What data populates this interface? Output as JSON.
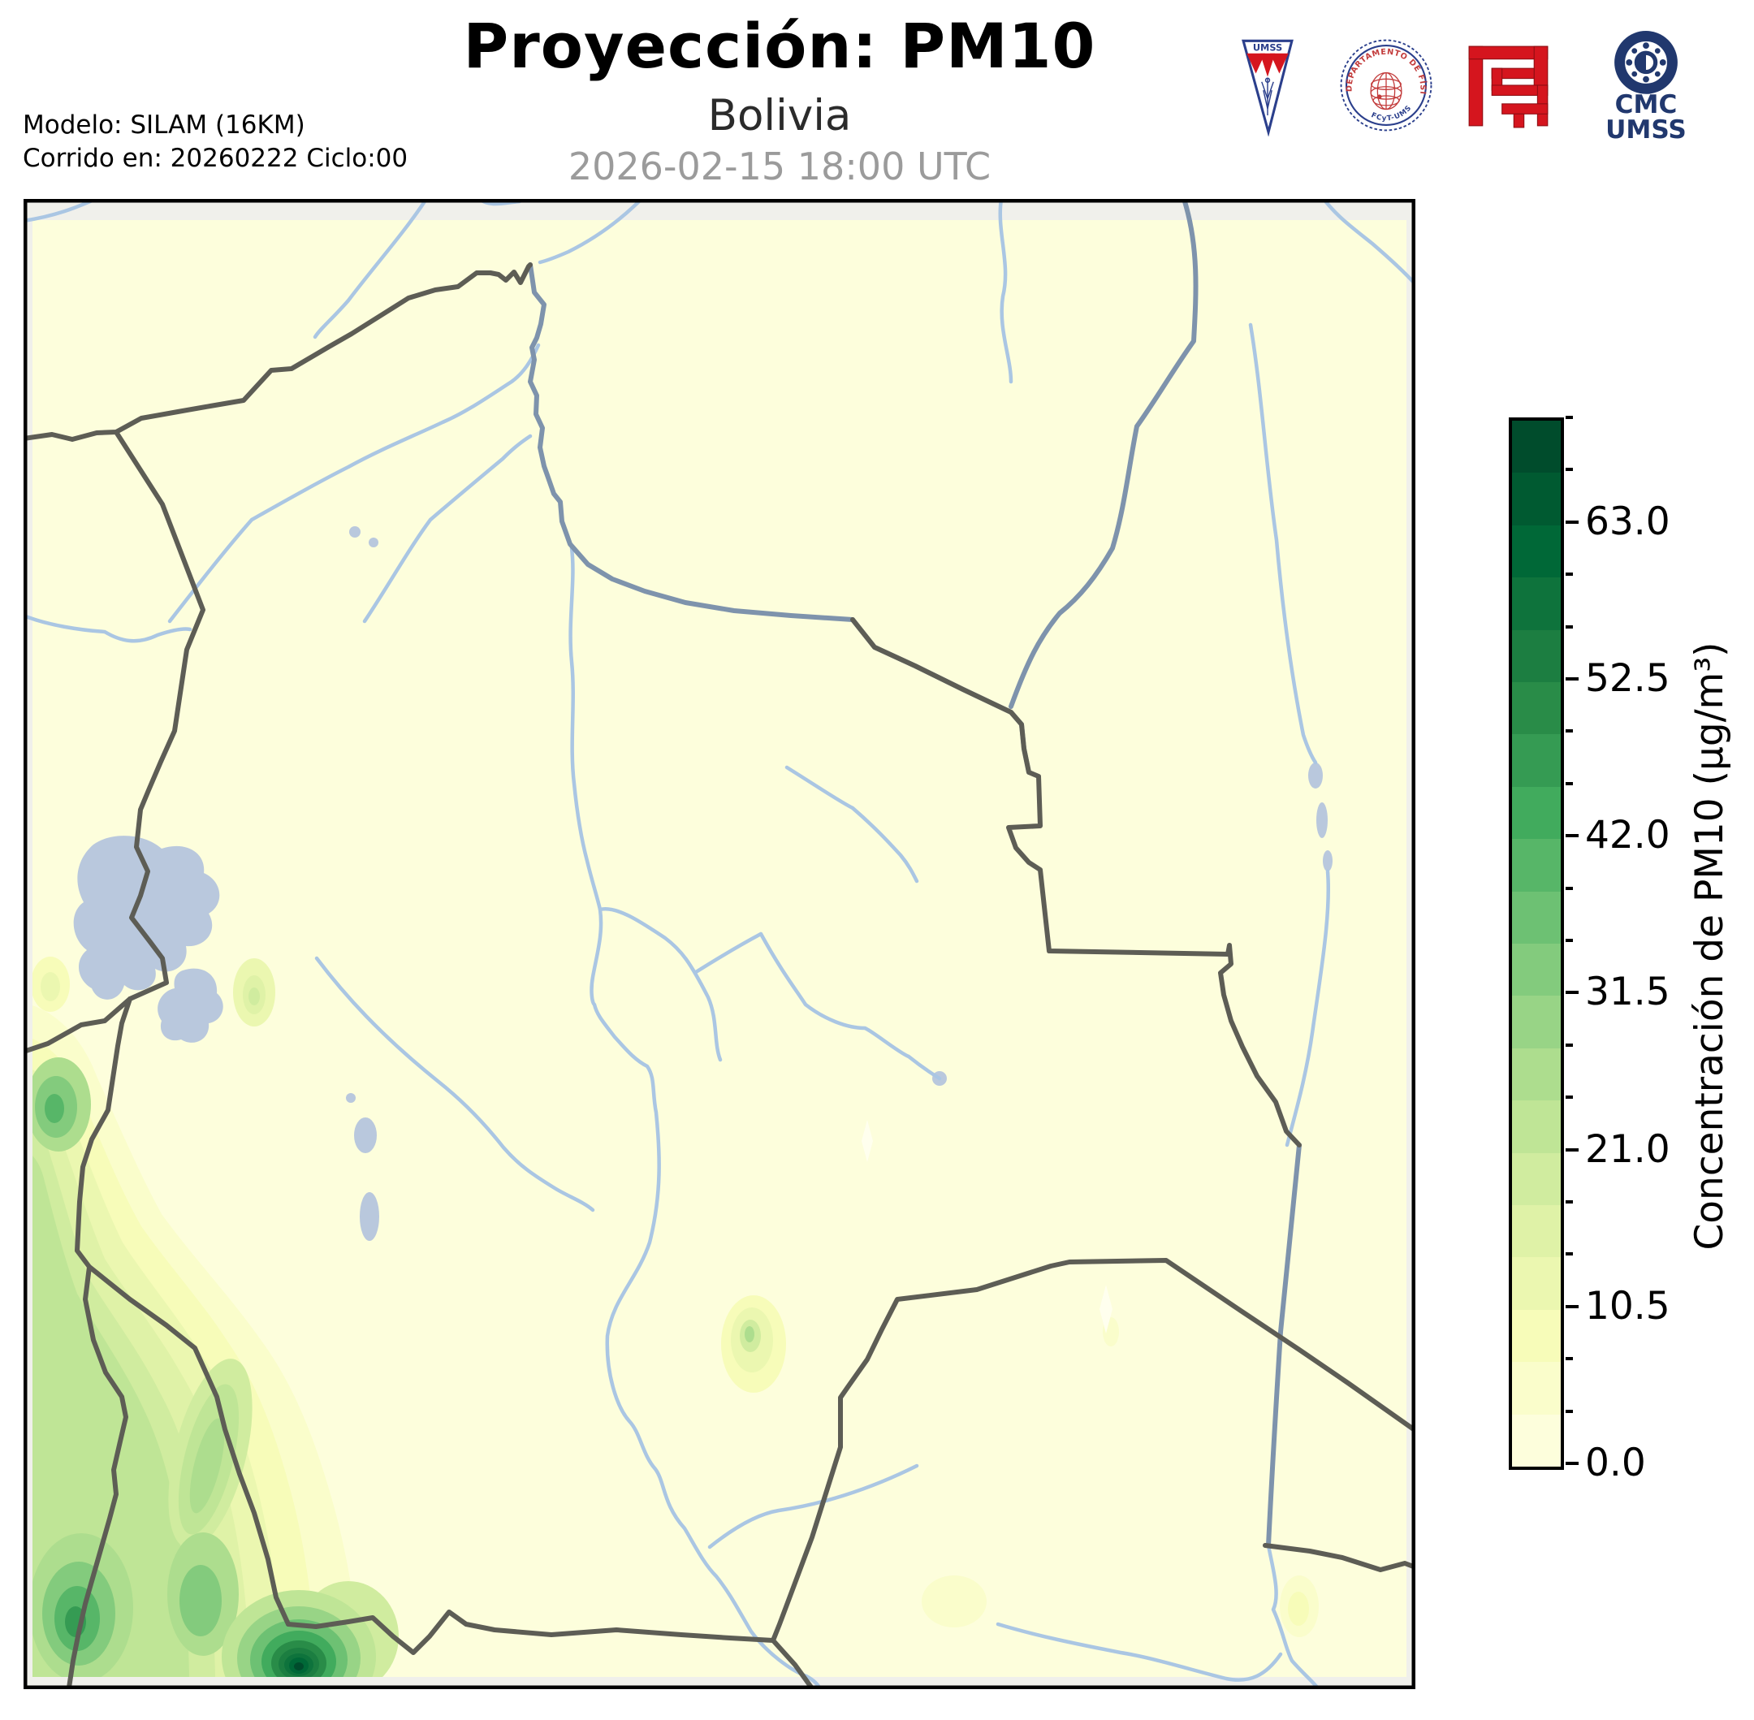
{
  "header": {
    "title": "Proyección: PM10",
    "subtitle": "Bolivia",
    "datetime": "2026-02-15 18:00 UTC",
    "model_line1": "Modelo: SILAM (16KM)",
    "model_line2": "Corrido en: 20260222 Ciclo:00"
  },
  "logos": {
    "pennant_text": "UMSS",
    "seal_text_top": "DEPARTAMENTO DE FÍSICA",
    "seal_text_bottom": "FCyT-UMSS",
    "cmc_line1": "CMC",
    "cmc_line2": "UMSS"
  },
  "colorbar": {
    "title": "Concentración de PM10 (µg/m³)",
    "min": 0,
    "max": 70,
    "minor_step": 3.5,
    "major_ticks": [
      {
        "value": 0.0,
        "label": "0.0"
      },
      {
        "value": 10.5,
        "label": "10.5"
      },
      {
        "value": 21.0,
        "label": "21.0"
      },
      {
        "value": 31.5,
        "label": "31.5"
      },
      {
        "value": 42.0,
        "label": "42.0"
      },
      {
        "value": 52.5,
        "label": "52.5"
      },
      {
        "value": 63.0,
        "label": "63.0"
      }
    ],
    "segments": [
      "#fdfedc",
      "#fafdcb",
      "#f7fcb9",
      "#ebf7b0",
      "#dff2a7",
      "#d0ec9f",
      "#bfe596",
      "#addd8e",
      "#98d486",
      "#83cb7d",
      "#6dc173",
      "#57b668",
      "#41ab5d",
      "#359b53",
      "#298c48",
      "#1c7e41",
      "#0e733c",
      "#006837",
      "#005a31",
      "#004c2c"
    ]
  },
  "theme": {
    "text": "#000000",
    "muted": "#9b9b9b",
    "map-margin": "#f0f0eb",
    "river": "#aac6e3",
    "major-river": "#7e93ac",
    "border-line": "#5d5d55",
    "lake": "#b9c8dd",
    "frame": "#000000",
    "dip": "#ffffee",
    "logo-red": "#d5151e",
    "logo-navy": "#21386e",
    "seal-red": "#c23b3b",
    "seal-blue": "#2b3f8c"
  }
}
